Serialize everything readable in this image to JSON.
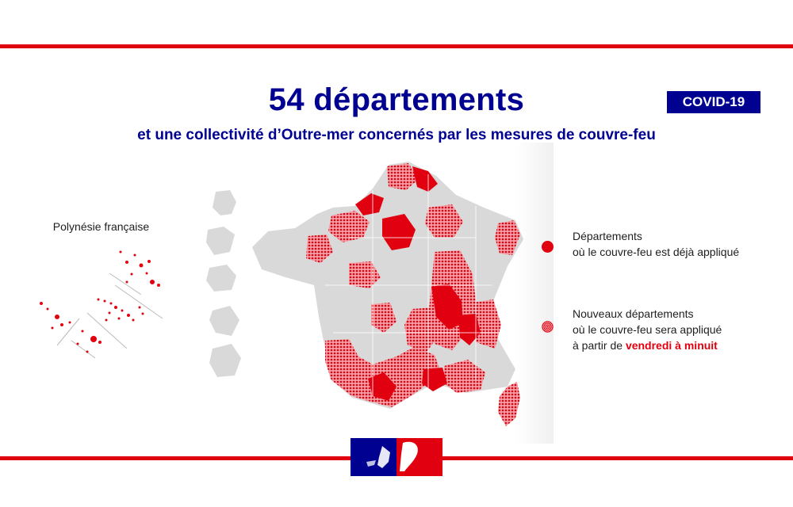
{
  "header": {
    "title": "54 départements",
    "subtitle": "et une collectivité d’Outre-mer concernés par les mesures de couvre-feu",
    "badge": "COVID-19"
  },
  "inset": {
    "label": "Polynésie française"
  },
  "legend": {
    "existing": {
      "line1": "Départements",
      "line2": "où le couvre-feu est déjà appliqué"
    },
    "new": {
      "line1": "Nouveaux départements",
      "line2": "où le couvre-feu sera appliqué",
      "line3_prefix": "à partir de ",
      "line3_emphasis": "vendredi à minuit"
    }
  },
  "colors": {
    "navy": "#000091",
    "red": "#e1000f",
    "map_gray": "#d9d9d9"
  },
  "icons": [
    "marianne-logo",
    "legend-solid-dot",
    "legend-hatched-dot"
  ]
}
